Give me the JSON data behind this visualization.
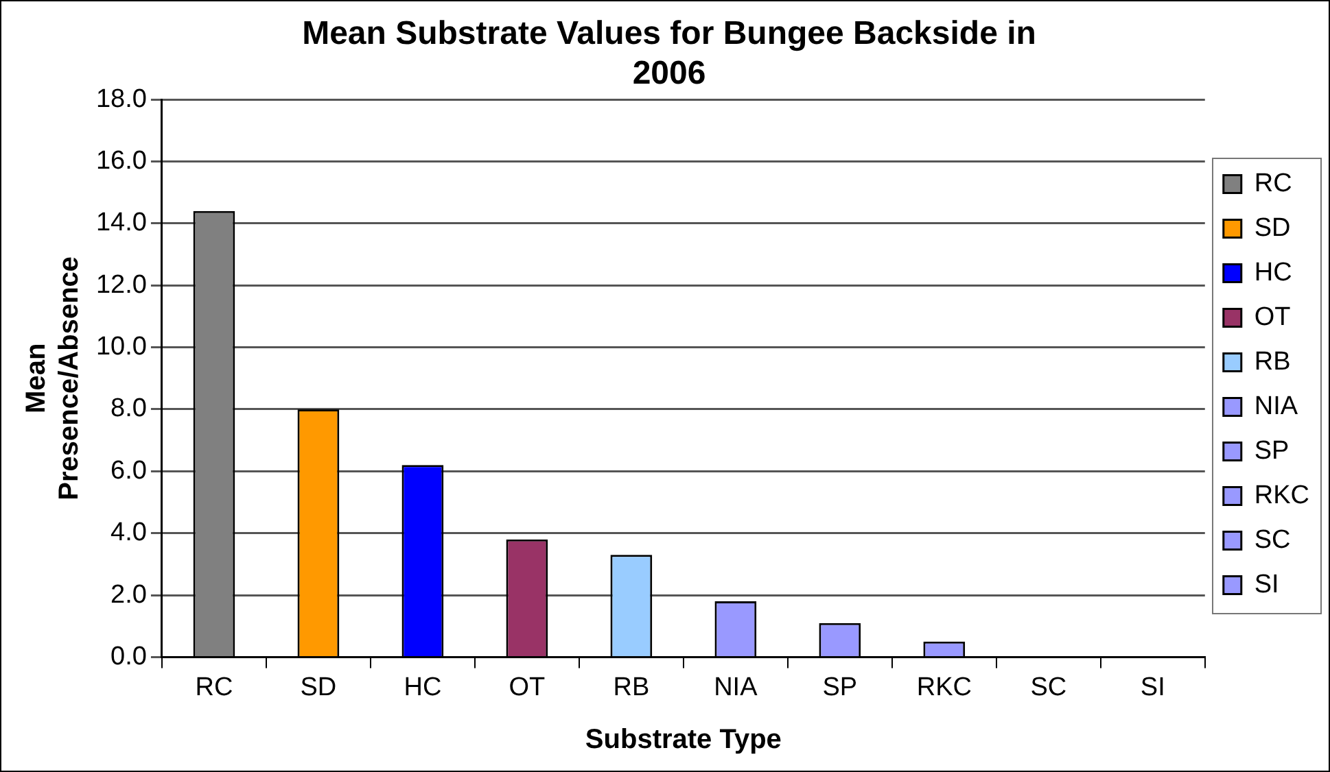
{
  "chart_data": {
    "type": "bar",
    "title": "Mean Substrate Values for Bungee Backside in 2006",
    "xlabel": "Substrate Type",
    "ylabel": "Mean Presence/Absence",
    "categories": [
      "RC",
      "SD",
      "HC",
      "OT",
      "RB",
      "NIA",
      "SP",
      "RKC",
      "SC",
      "SI"
    ],
    "series": [
      {
        "name": "RC",
        "color": "#808080",
        "values": [
          14.4,
          null,
          null,
          null,
          null,
          null,
          null,
          null,
          null,
          null
        ]
      },
      {
        "name": "SD",
        "color": "#ff9900",
        "values": [
          null,
          8.0,
          null,
          null,
          null,
          null,
          null,
          null,
          null,
          null
        ]
      },
      {
        "name": "HC",
        "color": "#0000ff",
        "values": [
          null,
          null,
          6.2,
          null,
          null,
          null,
          null,
          null,
          null,
          null
        ]
      },
      {
        "name": "OT",
        "color": "#993366",
        "values": [
          null,
          null,
          null,
          3.8,
          null,
          null,
          null,
          null,
          null,
          null
        ]
      },
      {
        "name": "RB",
        "color": "#99ccff",
        "values": [
          null,
          null,
          null,
          null,
          3.3,
          null,
          null,
          null,
          null,
          null
        ]
      },
      {
        "name": "NIA",
        "color": "#9999ff",
        "values": [
          null,
          null,
          null,
          null,
          null,
          1.8,
          null,
          null,
          null,
          null
        ]
      },
      {
        "name": "SP",
        "color": "#9999ff",
        "values": [
          null,
          null,
          null,
          null,
          null,
          null,
          1.1,
          null,
          null,
          null
        ]
      },
      {
        "name": "RKC",
        "color": "#9999ff",
        "values": [
          null,
          null,
          null,
          null,
          null,
          null,
          null,
          0.5,
          null,
          null
        ]
      },
      {
        "name": "SC",
        "color": "#9999ff",
        "values": [
          null,
          null,
          null,
          null,
          null,
          null,
          null,
          null,
          0,
          null
        ]
      },
      {
        "name": "SI",
        "color": "#9999ff",
        "values": [
          null,
          null,
          null,
          null,
          null,
          null,
          null,
          null,
          null,
          0
        ]
      }
    ],
    "ylim": [
      0,
      18
    ],
    "yticks": [
      {
        "value": 0,
        "label": "0.0"
      },
      {
        "value": 2,
        "label": "2.0"
      },
      {
        "value": 4,
        "label": "4.0"
      },
      {
        "value": 6,
        "label": "6.0"
      },
      {
        "value": 8,
        "label": "8.0"
      },
      {
        "value": 10,
        "label": "10.0"
      },
      {
        "value": 12,
        "label": "12.0"
      },
      {
        "value": 14,
        "label": "14.0"
      },
      {
        "value": 16,
        "label": "16.0"
      },
      {
        "value": 18,
        "label": "18.0"
      }
    ],
    "grid": "y",
    "legend": "right"
  }
}
